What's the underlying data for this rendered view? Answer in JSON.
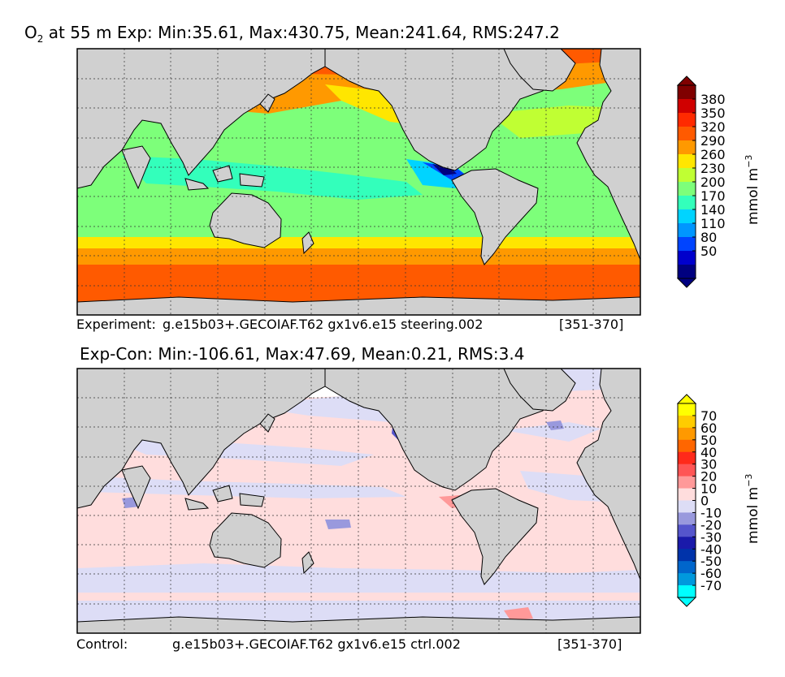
{
  "panel1": {
    "title": {
      "prefix": "O",
      "subscript": "2",
      "text": " at 55 m Exp: Min:35.61, Max:430.75, Mean:241.64, RMS:247.2"
    },
    "caption": {
      "label": "Experiment:",
      "run": "g.e15b03+.GECOIAF.T62 gx1v6.e15 steering.002",
      "years": "[351-370]"
    },
    "colorbar": {
      "ticks": [
        "380",
        "350",
        "320",
        "290",
        "260",
        "230",
        "200",
        "170",
        "140",
        "110",
        "80",
        "50"
      ],
      "colors": [
        "#800000",
        "#d00000",
        "#ff2a00",
        "#ff5a00",
        "#ff9900",
        "#ffe600",
        "#c0ff33",
        "#7dff7a",
        "#33ffbb",
        "#00d4ff",
        "#0096ff",
        "#0044ff",
        "#0000cc",
        "#000080"
      ],
      "unit": "mmol m",
      "unit_exp": "−3"
    }
  },
  "panel2": {
    "title": "Exp-Con: Min:-106.61, Max:47.69, Mean:0.21, RMS:3.4",
    "caption": {
      "label": "Control:",
      "run": "g.e15b03+.GECOIAF.T62 gx1v6.e15 ctrl.002",
      "years": "[351-370]"
    },
    "colorbar": {
      "ticks": [
        "70",
        "60",
        "50",
        "40",
        "30",
        "20",
        "10",
        "0",
        "-10",
        "-20",
        "-30",
        "-40",
        "-50",
        "-60",
        "-70"
      ],
      "colors": [
        "#ffff00",
        "#ffcc00",
        "#ff9900",
        "#ff6600",
        "#ff2a1a",
        "#ff5555",
        "#ff9999",
        "#ffdddd",
        "#ddddf6",
        "#9999dd",
        "#5555cc",
        "#1a1aaa",
        "#0033aa",
        "#0066cc",
        "#0099dd",
        "#00ffff"
      ],
      "unit": "mmol m",
      "unit_exp": "−3"
    }
  },
  "chart_data": [
    {
      "type": "heatmap",
      "title": "O2 at 55 m Exp: Min:35.61, Max:430.75, Mean:241.64, RMS:247.2",
      "stats": {
        "min": 35.61,
        "max": 430.75,
        "mean": 241.64,
        "rms": 247.2
      },
      "levels": [
        50,
        80,
        110,
        140,
        170,
        200,
        230,
        260,
        290,
        320,
        350,
        380
      ],
      "unit": "mmol m-3",
      "grid": true,
      "legend": "right"
    },
    {
      "type": "heatmap",
      "title": "Exp-Con: Min:-106.61, Max:47.69, Mean:0.21, RMS:3.4",
      "stats": {
        "min": -106.61,
        "max": 47.69,
        "mean": 0.21,
        "rms": 3.4
      },
      "levels": [
        -70,
        -60,
        -50,
        -40,
        -30,
        -20,
        -10,
        0,
        10,
        20,
        30,
        40,
        50,
        60,
        70
      ],
      "unit": "mmol m-3",
      "grid": true,
      "legend": "right"
    }
  ]
}
